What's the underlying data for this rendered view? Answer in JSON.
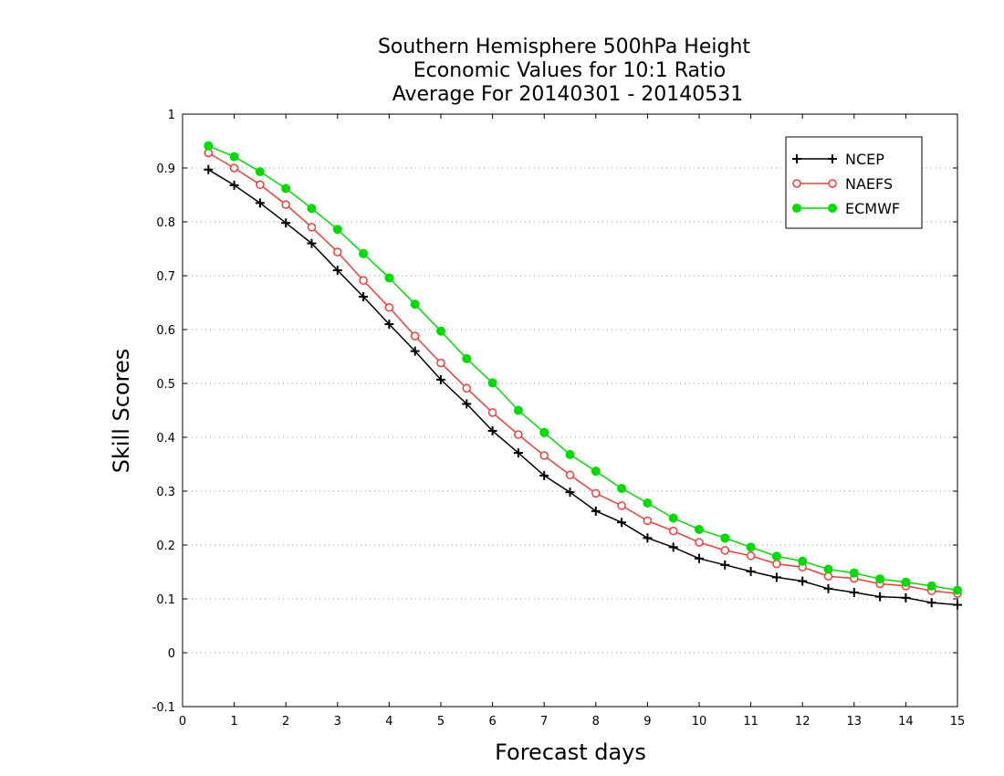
{
  "chart_data": {
    "type": "line",
    "title_lines": [
      "Southern Hemisphere 500hPa Height",
      "Economic Values for 10:1 Ratio",
      "Average For 20140301 - 20140531"
    ],
    "xlabel": "Forecast days",
    "ylabel": "Skill Scores",
    "xlim": [
      0,
      15
    ],
    "ylim": [
      -0.1,
      1
    ],
    "xticks": [
      0,
      1,
      2,
      3,
      4,
      5,
      6,
      7,
      8,
      9,
      10,
      11,
      12,
      13,
      14,
      15
    ],
    "xtick_labels": [
      "0",
      "1",
      "2",
      "3",
      "4",
      "5",
      "6",
      "7",
      "8",
      "9",
      "10",
      "11",
      "12",
      "13",
      "14",
      "15"
    ],
    "yticks": [
      -0.1,
      0,
      0.1,
      0.2,
      0.3,
      0.4,
      0.5,
      0.6,
      0.7,
      0.8,
      0.9,
      1
    ],
    "ytick_labels": [
      "-0.1",
      "0",
      "0.1",
      "0.2",
      "0.3",
      "0.4",
      "0.5",
      "0.6",
      "0.7",
      "0.8",
      "0.9",
      "1"
    ],
    "grid": "horizontal dotted",
    "legend_position": "top-right",
    "x": [
      0.5,
      1,
      1.5,
      2,
      2.5,
      3,
      3.5,
      4,
      4.5,
      5,
      5.5,
      6,
      6.5,
      7,
      7.5,
      8,
      8.5,
      9,
      9.5,
      10,
      10.5,
      11,
      11.5,
      12,
      12.5,
      13,
      13.5,
      14,
      14.5,
      15
    ],
    "series": [
      {
        "name": "NCEP",
        "color": "#000000",
        "marker": "plus",
        "values": [
          0.897,
          0.868,
          0.835,
          0.798,
          0.76,
          0.71,
          0.661,
          0.61,
          0.56,
          0.507,
          0.462,
          0.412,
          0.371,
          0.329,
          0.298,
          0.263,
          0.242,
          0.213,
          0.196,
          0.175,
          0.163,
          0.151,
          0.14,
          0.133,
          0.119,
          0.112,
          0.104,
          0.102,
          0.093,
          0.089
        ]
      },
      {
        "name": "NAEFS",
        "color": "#f03c3c",
        "marker": "open-circle",
        "values": [
          0.928,
          0.9,
          0.869,
          0.832,
          0.79,
          0.744,
          0.691,
          0.641,
          0.588,
          0.538,
          0.491,
          0.446,
          0.405,
          0.366,
          0.33,
          0.296,
          0.273,
          0.245,
          0.226,
          0.205,
          0.19,
          0.18,
          0.165,
          0.159,
          0.142,
          0.138,
          0.128,
          0.124,
          0.115,
          0.11
        ]
      },
      {
        "name": "ECMWF",
        "color": "#00dc00",
        "marker": "filled-circle",
        "values": [
          0.941,
          0.921,
          0.893,
          0.862,
          0.825,
          0.786,
          0.741,
          0.696,
          0.647,
          0.597,
          0.546,
          0.501,
          0.45,
          0.409,
          0.368,
          0.337,
          0.305,
          0.278,
          0.25,
          0.229,
          0.213,
          0.196,
          0.179,
          0.17,
          0.155,
          0.148,
          0.137,
          0.131,
          0.124,
          0.116
        ]
      }
    ]
  }
}
